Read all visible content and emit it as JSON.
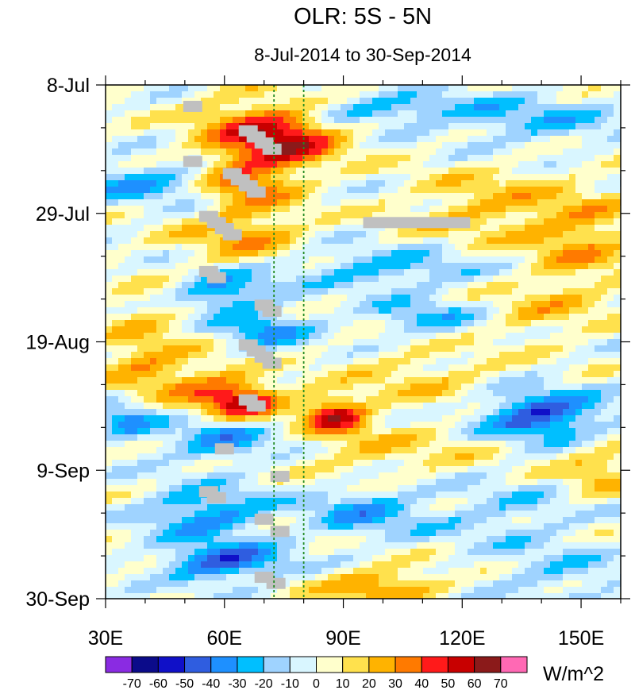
{
  "chart_data": {
    "type": "heatmap",
    "title": "OLR: 5S - 5N",
    "subtitle": "8-Jul-2014 to 30-Sep-2014",
    "xlabel": "",
    "ylabel": "",
    "x_ticks": [
      "30E",
      "60E",
      "90E",
      "120E",
      "150E"
    ],
    "x_tick_values": [
      30,
      60,
      90,
      120,
      150
    ],
    "xlim": [
      30,
      160
    ],
    "y_ticks": [
      "8-Jul",
      "29-Jul",
      "19-Aug",
      "9-Sep",
      "30-Sep"
    ],
    "y_tick_days": [
      0,
      21,
      42,
      63,
      84
    ],
    "ylim_days": [
      0,
      84
    ],
    "reference_lines_lon": [
      72.5,
      80
    ],
    "colorbar": {
      "units": "W/m^2",
      "labels": [
        "-70",
        "-60",
        "-50",
        "-40",
        "-30",
        "-20",
        "-10",
        "0",
        "10",
        "20",
        "30",
        "40",
        "50",
        "60",
        "70"
      ],
      "colors": [
        "#8a2be2",
        "#0b0b8a",
        "#1010c8",
        "#2f5de0",
        "#1e90ff",
        "#00bfff",
        "#9fd3ff",
        "#d9f6ff",
        "#ffffcc",
        "#ffe14d",
        "#ffb300",
        "#ff7a00",
        "#ff1a1a",
        "#c80000",
        "#8b1a1a",
        "#ff69b4"
      ]
    },
    "missing_color": "#c0c0c0",
    "missing_patches": [
      {
        "lon": 52,
        "day": 3.5
      },
      {
        "lon": 66,
        "day": 7.5
      },
      {
        "lon": 68,
        "day": 8.5
      },
      {
        "lon": 70,
        "day": 9.5
      },
      {
        "lon": 72,
        "day": 10.5
      },
      {
        "lon": 52,
        "day": 12.5
      },
      {
        "lon": 62,
        "day": 14.5
      },
      {
        "lon": 64,
        "day": 15.5
      },
      {
        "lon": 66,
        "day": 16.5
      },
      {
        "lon": 68,
        "day": 17.5
      },
      {
        "lon": 56,
        "day": 21.5
      },
      {
        "lon": 58,
        "day": 22.5
      },
      {
        "lon": 60,
        "day": 23.5
      },
      {
        "lon": 62,
        "day": 24.5
      },
      {
        "lon": 56,
        "day": 30.5
      },
      {
        "lon": 58,
        "day": 31.5
      },
      {
        "lon": 70,
        "day": 36
      },
      {
        "lon": 72,
        "day": 37
      },
      {
        "lon": 66,
        "day": 42.5
      },
      {
        "lon": 68,
        "day": 43.5
      },
      {
        "lon": 70,
        "day": 44.5
      },
      {
        "lon": 72,
        "day": 45.5
      },
      {
        "lon": 66,
        "day": 51.5
      },
      {
        "lon": 68,
        "day": 52.5
      },
      {
        "lon": 60,
        "day": 59.5
      },
      {
        "lon": 74,
        "day": 64
      },
      {
        "lon": 56,
        "day": 66.5
      },
      {
        "lon": 58,
        "day": 67.5
      },
      {
        "lon": 70,
        "day": 71
      },
      {
        "lon": 74,
        "day": 73
      },
      {
        "lon": 70,
        "day": 80.5
      },
      {
        "lon": 73,
        "day": 81.5
      }
    ],
    "missing_bars": [
      {
        "lon_start": 95,
        "lon_end": 122,
        "day": 22.5
      }
    ]
  }
}
